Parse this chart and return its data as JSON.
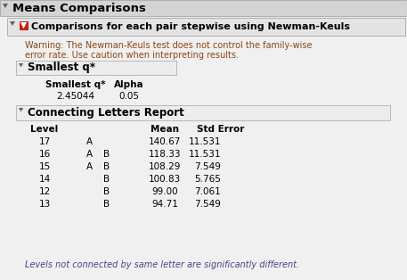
{
  "title_main": "Means Comparisons",
  "title_sub": "Comparisons for each pair stepwise using Newman-Keuls",
  "warning_line1": "Warning: The Newman-Keuls test does not control the family-wise",
  "warning_line2": "error rate. Use caution when interpreting results.",
  "smallest_q_label": "Smallest q*",
  "sq_col1_header": "Smallest q*",
  "sq_col2_header": "Alpha",
  "sq_col1_val": "2.45044",
  "sq_col2_val": "0.05",
  "connecting_letters_title": "Connecting Letters Report",
  "col_headers": [
    "Level",
    "Mean",
    "Std Error"
  ],
  "table_data": [
    [
      "17",
      "A",
      "",
      "140.67",
      "11.531"
    ],
    [
      "16",
      "A",
      "B",
      "118.33",
      "11.531"
    ],
    [
      "15",
      "A",
      "B",
      "108.29",
      "7.549"
    ],
    [
      "14",
      "",
      "B",
      "100.83",
      "5.765"
    ],
    [
      "12",
      "",
      "B",
      "99.00",
      "7.061"
    ],
    [
      "13",
      "",
      "B",
      "94.71",
      "7.549"
    ]
  ],
  "footnote": "Levels not connected by same letter are significantly different.",
  "bg_color": "#f0f0f0",
  "main_header_bg": "#d4d4d4",
  "section_bg": "#e4e4e4",
  "sub_section_bg": "#ececec",
  "border_color": "#b0b0b0",
  "text_color": "#000000",
  "warning_color": "#8B4513",
  "red_icon_color": "#cc2200",
  "triangle_color": "#606060",
  "footnote_color": "#444488"
}
